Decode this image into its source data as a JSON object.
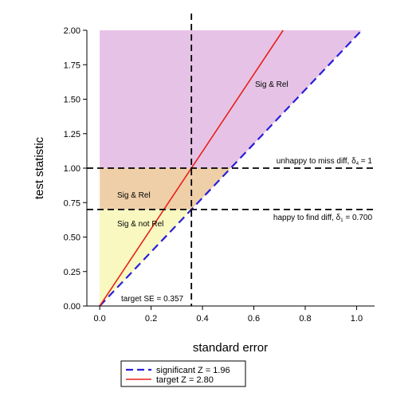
{
  "chart_data": {
    "type": "line",
    "title": "",
    "xlabel": "standard error",
    "ylabel": "test statistic",
    "xlim": [
      -0.05,
      1.07
    ],
    "ylim": [
      0,
      2.0
    ],
    "xticks": [
      0.0,
      0.2,
      0.4,
      0.6,
      0.8,
      1.0
    ],
    "xtick_labels": [
      "0.0",
      "0.2",
      "0.4",
      "0.6",
      "0.8",
      "1.0"
    ],
    "yticks": [
      0.0,
      0.25,
      0.5,
      0.75,
      1.0,
      1.25,
      1.5,
      1.75,
      2.0
    ],
    "ytick_labels": [
      "0.00",
      "0.25",
      "0.50",
      "0.75",
      "1.00",
      "1.25",
      "1.50",
      "1.75",
      "2.00"
    ],
    "grid": false,
    "legend_position": "bottom-left, below plot",
    "series": [
      {
        "name": "significant Z = 1.96",
        "style": "dashed",
        "color": "#2a1fd6",
        "x": [
          0.0,
          1.02
        ],
        "y": [
          0.0,
          2.0
        ]
      },
      {
        "name": "target Z = 2.80",
        "style": "solid",
        "color": "#e8201a",
        "x": [
          0.0,
          0.714
        ],
        "y": [
          0.0,
          2.0
        ]
      }
    ],
    "reference_lines": [
      {
        "orientation": "horizontal",
        "y": 1.0,
        "label": "unhappy to miss diff, δ",
        "label_sub": "4",
        "label_suffix": " = 1"
      },
      {
        "orientation": "horizontal",
        "y": 0.7,
        "label": "happy to find diff, δ",
        "label_sub": "1",
        "label_suffix": " = 0.700"
      },
      {
        "orientation": "vertical",
        "x": 0.357,
        "label": "target SE = 0.357"
      }
    ],
    "regions": [
      {
        "label": "Sig & Rel",
        "color": "#e6c3e6"
      },
      {
        "label": "Sig & Rel",
        "color": "#efcfa8"
      },
      {
        "label": "Sig & not Rel",
        "color": "#f8f8c0"
      }
    ]
  }
}
